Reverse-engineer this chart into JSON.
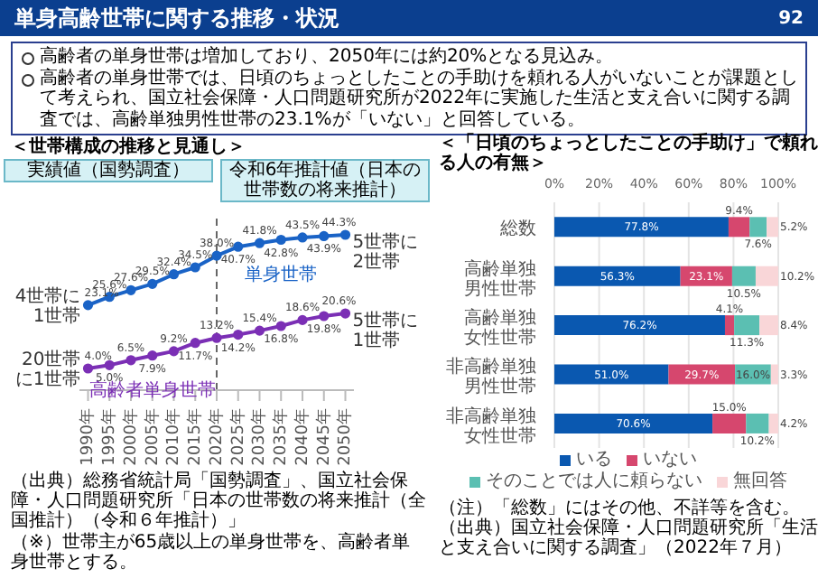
{
  "chart_data": [
    {
      "type": "other",
      "title": "単身高齢世帯に関する推移・状況",
      "annotations": [
        "高齢者の単身世帯は増加しており、2050年には約20%となる見込み。",
        "高齢者の単身世帯では、日頃のちょっとしたことの手助けを頼れる人がいないことが課題として考えられ、国立社会保障・人口問題研究所が2022年に実施した生活と支え合いに関する調査では、高齢単独男性世帯の23.1%が「いない」と回答している。",
        "92"
      ]
    },
    {
      "type": "line",
      "title": "＜世帯構成の推移と見通し＞",
      "x": [
        1990,
        1995,
        2000,
        2005,
        2010,
        2015,
        2020,
        2025,
        2030,
        2035,
        2040,
        2045,
        2050
      ],
      "xlim": [
        1988,
        2052
      ],
      "xticks": [
        {
          "value": 1990,
          "label": "1990年"
        },
        {
          "value": 1995,
          "label": "1995年"
        },
        {
          "value": 2000,
          "label": "2000年"
        },
        {
          "value": 2005,
          "label": "2005年"
        },
        {
          "value": 2010,
          "label": "2010年"
        },
        {
          "value": 2015,
          "label": "2015年"
        },
        {
          "value": 2020,
          "label": "2020年"
        },
        {
          "value": 2025,
          "label": "2025年"
        },
        {
          "value": 2030,
          "label": "2030年"
        },
        {
          "value": 2035,
          "label": "2035年"
        },
        {
          "value": 2040,
          "label": "2040年"
        },
        {
          "value": 2045,
          "label": "2045年"
        },
        {
          "value": 2050,
          "label": "2050年"
        }
      ],
      "series": [
        {
          "name": "単身世帯",
          "color": "#1a63c6",
          "values": [
            23.1,
            25.6,
            27.6,
            29.5,
            32.4,
            34.5,
            38.0,
            40.7,
            41.8,
            42.8,
            43.5,
            43.9,
            44.3
          ],
          "value_labels": [
            "23.1%",
            "25.6%",
            "27.6%",
            "29.5%",
            "32.4%",
            "34.5%",
            "38.0%",
            "40.7%",
            "41.8%",
            "42.8%",
            "43.5%",
            "43.9%",
            "44.3%"
          ]
        },
        {
          "name": "高齢者単身世帯",
          "color": "#7b2fb5",
          "values": [
            4.0,
            5.0,
            6.5,
            7.9,
            9.2,
            11.7,
            13.2,
            14.2,
            15.4,
            16.8,
            18.6,
            19.8,
            20.6
          ],
          "value_labels": [
            "4.0%",
            "5.0%",
            "6.5%",
            "7.9%",
            "9.2%",
            "11.7%",
            "13.2%",
            "14.2%",
            "15.4%",
            "16.8%",
            "18.6%",
            "19.8%",
            "20.6%"
          ]
        }
      ],
      "marker": "circle",
      "line_style": "solid",
      "ref_lines": [
        {
          "axis": "x",
          "value": 2020,
          "color": "#666666",
          "line_style": "dashed"
        }
      ],
      "annotations": [
        "実績値（国勢調査）",
        "令和6年推計値（日本の世帯数の将来推計）",
        "4世帯に1世帯",
        "20世帯に1世帯",
        "5世帯に2世帯",
        "5世帯に1世帯",
        "（出典）総務省統計局「国勢調査」、国立社会保障・人口問題研究所「日本の世帯数の将来推計（全国推計）（令和６年推計）」",
        "（※）世帯主が65歳以上の単身世帯を、高齢者単身世帯とする。"
      ]
    },
    {
      "type": "bar",
      "orientation": "horizontal",
      "stacked": true,
      "title": "＜「日頃のちょっとしたことの手助け」で頼れる人の有無＞",
      "categories": [
        "総数",
        "高齢単独男性世帯",
        "高齢単独女性世帯",
        "非高齢単独男性世帯",
        "非高齢単独女性世帯"
      ],
      "series": [
        {
          "name": "いる",
          "color": "#0a58b0",
          "values": [
            77.8,
            56.3,
            76.2,
            51.0,
            70.6
          ],
          "value_labels": [
            "77.8%",
            "56.3%",
            "76.2%",
            "51.0%",
            "70.6%"
          ]
        },
        {
          "name": "いない",
          "color": "#d6476e",
          "values": [
            9.4,
            23.1,
            4.1,
            29.7,
            15.0
          ],
          "value_labels": [
            "9.4%",
            "23.1%",
            "4.1%",
            "29.7%",
            "15.0%"
          ]
        },
        {
          "name": "そのことでは人に頼らない",
          "color": "#5bbfb2",
          "values": [
            7.6,
            10.5,
            11.3,
            16.0,
            10.2
          ],
          "value_labels": [
            "7.6%",
            "10.5%",
            "11.3%",
            "16.0%",
            "10.2%"
          ]
        },
        {
          "name": "無回答",
          "color": "#f9d6d8",
          "values": [
            5.2,
            10.2,
            8.4,
            3.3,
            4.2
          ],
          "value_labels": [
            "5.2%",
            "10.2%",
            "8.4%",
            "3.3%",
            "4.2%"
          ]
        }
      ],
      "xlim": [
        0,
        100
      ],
      "xticks": [
        {
          "value": 0,
          "label": "0%"
        },
        {
          "value": 20,
          "label": "20%"
        },
        {
          "value": 40,
          "label": "40%"
        },
        {
          "value": 60,
          "label": "60%"
        },
        {
          "value": 80,
          "label": "80%"
        },
        {
          "value": 100,
          "label": "100%"
        }
      ],
      "grid": "x",
      "legend": "bottom",
      "annotations": [
        "（注）「総数」にはその他、不詳等を含む。",
        "（出典）国立社会保障・人口問題研究所「生活と支え合いに関する調査」（2022年７月）"
      ]
    }
  ]
}
